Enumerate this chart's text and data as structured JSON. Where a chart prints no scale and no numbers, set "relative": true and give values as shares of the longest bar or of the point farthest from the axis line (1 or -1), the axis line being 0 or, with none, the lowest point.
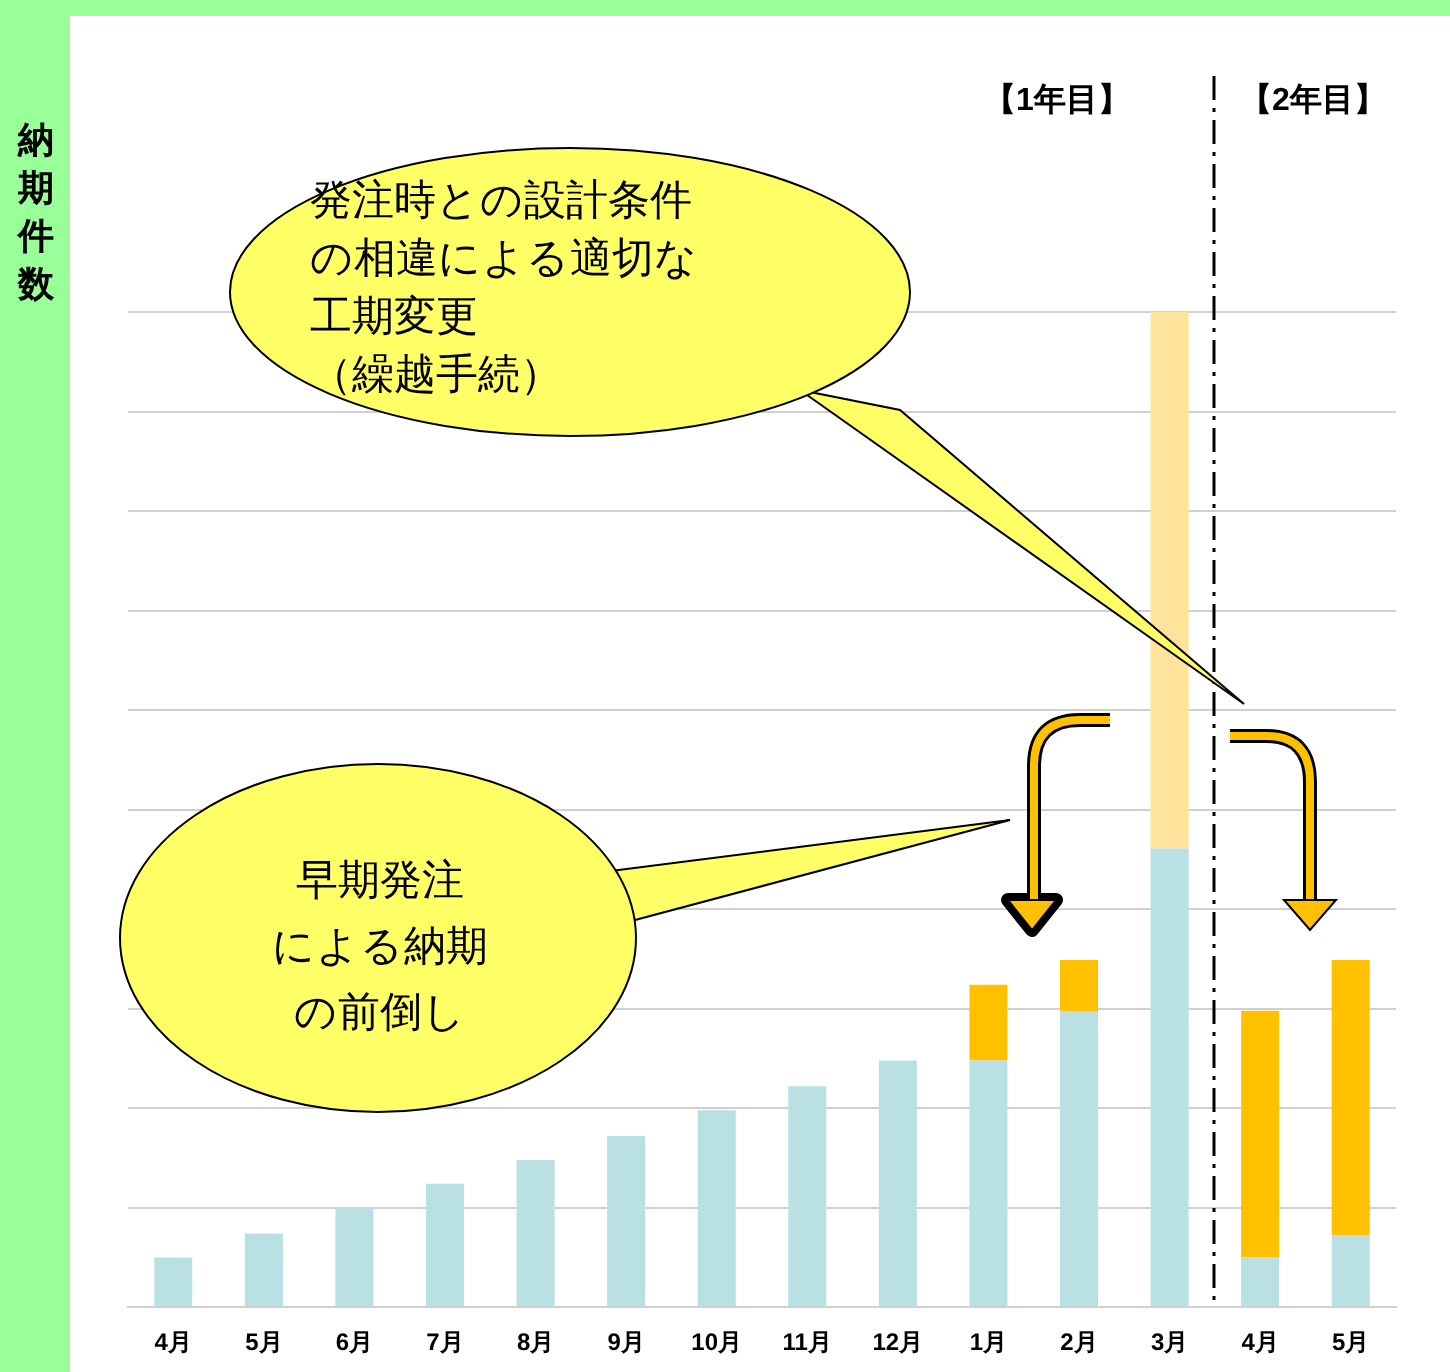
{
  "chart_data": {
    "type": "bar",
    "ylabel": "納期件数",
    "relative": true,
    "stacked": true,
    "grid": "y",
    "legend": false,
    "categories": [
      "4月",
      "5月",
      "6月",
      "7月",
      "8月",
      "9月",
      "10月",
      "11月",
      "12月",
      "1月",
      "2月",
      "3月",
      "4月",
      "5月"
    ],
    "series": [
      {
        "color": "#b9e0e3",
        "values": [
          0.05,
          0.074,
          0.1,
          0.124,
          0.148,
          0.172,
          0.198,
          0.222,
          0.248,
          0.248,
          0.297,
          0.461,
          0.05,
          0.072
        ]
      },
      {
        "color": "#ffc000",
        "values": [
          null,
          null,
          null,
          null,
          null,
          null,
          null,
          null,
          null,
          0.076,
          0.052,
          null,
          0.248,
          0.277
        ]
      },
      {
        "color": "#ffe39a",
        "values": [
          null,
          null,
          null,
          null,
          null,
          null,
          null,
          null,
          null,
          null,
          null,
          0.539,
          null,
          null
        ]
      }
    ],
    "annotations": [
      "発注時との設計条件の相違による適切な工期変更（繰越手続）",
      "早期発注による納期の前倒し",
      "【1年目】",
      "【2年目】"
    ]
  }
}
